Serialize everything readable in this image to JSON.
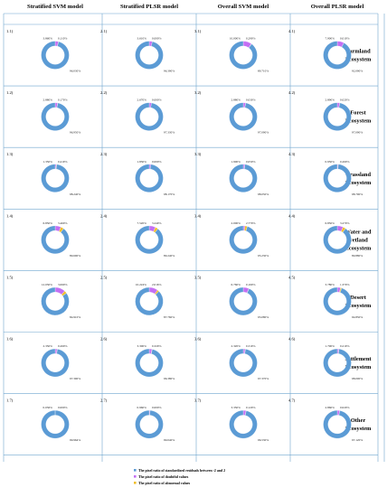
{
  "colors": {
    "normal": "#5b9bd5",
    "doubtful": "#c36ff3",
    "abnormal": "#f0be29",
    "grid": "#6fa6cf"
  },
  "columns": [
    "Stratified SVM model",
    "Stratified PLSR model",
    "Overall SVM model",
    "Overall PLSR model"
  ],
  "rows": [
    {
      "label": "Farmland Ecosystem",
      "lines": [
        "Farmland",
        "Ecosystem"
      ]
    },
    {
      "label": "Forest Ecosystem",
      "lines": [
        "Forest",
        "Ecosystem"
      ]
    },
    {
      "label": "Grassland Ecosystem",
      "lines": [
        "Grassland",
        "Ecosystem"
      ]
    },
    {
      "label": "Water and wetland Ecosystem",
      "lines": [
        "Water and",
        "wetland",
        "Ecosystem"
      ]
    },
    {
      "label": "Desert Ecosystem",
      "lines": [
        "Desert",
        "Ecosystem"
      ]
    },
    {
      "label": "Settlement Ecosystem",
      "lines": [
        "Settlement",
        "Ecosystem"
      ]
    },
    {
      "label": "Other Ecosystem",
      "lines": [
        "Other",
        "Ecosystem"
      ]
    }
  ],
  "legend": [
    "The pixel ratio of standardized residuals between -2 and 2",
    "The pixel ratio of doubtful values",
    "The pixel ratio of abnormal values"
  ],
  "chart_data": {
    "type": "pie",
    "style": "donut grid",
    "series": [
      "The pixel ratio of standardized residuals between -2 and 2",
      "The pixel ratio of doubtful values",
      "The pixel ratio of abnormal values"
    ],
    "panels": [
      [
        {
          "id": "1.1)",
          "values": [
            96.03,
            3.86,
            0.11
          ],
          "labels": [
            "96.030%",
            "3.860%",
            "0.110%"
          ]
        },
        {
          "id": "2.1)",
          "values": [
            96.39,
            3.61,
            0.0
          ],
          "labels": [
            "96.390%",
            "3.610%",
            "0.000%"
          ]
        },
        {
          "id": "3.1)",
          "values": [
            89.71,
            10.0,
            0.29
          ],
          "labels": [
            "89.710%",
            "10.000%",
            "0.290%"
          ]
        },
        {
          "id": "4.1)",
          "values": [
            92.09,
            7.9,
            0.01
          ],
          "labels": [
            "92.090%",
            "7.900%",
            "0.010%"
          ]
        }
      ],
      [
        {
          "id": "1.2)",
          "values": [
            96.95,
            2.88,
            0.17
          ],
          "labels": [
            "96.950%",
            "2.880%",
            "0.170%"
          ]
        },
        {
          "id": "2.2)",
          "values": [
            97.33,
            2.67,
            0.0
          ],
          "labels": [
            "97.330%",
            "2.670%",
            "0.000%"
          ]
        },
        {
          "id": "3.2)",
          "values": [
            97.09,
            2.88,
            0.03
          ],
          "labels": [
            "97.090%",
            "2.880%",
            "0.030%"
          ]
        },
        {
          "id": "4.2)",
          "values": [
            97.09,
            2.89,
            0.02
          ],
          "labels": [
            "97.090%",
            "2.890%",
            "0.020%"
          ]
        }
      ],
      [
        {
          "id": "1.3)",
          "values": [
            98.24,
            1.35,
            0.41
          ],
          "labels": [
            "98.240%",
            "1.350%",
            "0.410%"
          ]
        },
        {
          "id": "2.3)",
          "values": [
            98.17,
            1.83,
            0.0
          ],
          "labels": [
            "98.170%",
            "1.830%",
            "0.000%"
          ]
        },
        {
          "id": "3.3)",
          "values": [
            98.05,
            1.9,
            0.05
          ],
          "labels": [
            "98.050%",
            "1.900%",
            "0.050%"
          ]
        },
        {
          "id": "4.3)",
          "values": [
            98.79,
            0.95,
            0.26
          ],
          "labels": [
            "98.790%",
            "0.950%",
            "0.260%"
          ]
        }
      ],
      [
        {
          "id": "1.4)",
          "values": [
            89.69,
            6.85,
            3.46
          ],
          "labels": [
            "89.690%",
            "6.850%",
            "3.460%"
          ]
        },
        {
          "id": "2.4)",
          "values": [
            89.24,
            7.52,
            3.24
          ],
          "labels": [
            "89.240%",
            "7.520%",
            "3.240%"
          ]
        },
        {
          "id": "3.4)",
          "values": [
            95.23,
            2.0,
            2.77
          ],
          "labels": [
            "95.230%",
            "2.000%",
            "2.770%"
          ]
        },
        {
          "id": "4.4)",
          "values": [
            89.88,
            6.85,
            3.27
          ],
          "labels": [
            "89.880%",
            "6.850%",
            "3.270%"
          ]
        }
      ],
      [
        {
          "id": "1.5)",
          "values": [
            84.91,
            12.03,
            3.06
          ],
          "labels": [
            "84.910%",
            "12.030%",
            "3.060%"
          ]
        },
        {
          "id": "2.5)",
          "values": [
            87.76,
            10.224,
            2.016
          ],
          "labels": [
            "87.760%",
            "10.224%",
            "2.016%"
          ]
        },
        {
          "id": "3.5)",
          "values": [
            93.08,
            6.76,
            0.16
          ],
          "labels": [
            "93.080%",
            "6.760%",
            "0.160%"
          ]
        },
        {
          "id": "4.5)",
          "values": [
            94.85,
            3.78,
            1.37
          ],
          "labels": [
            "94.850%",
            "3.780%",
            "1.370%"
          ]
        }
      ],
      [
        {
          "id": "1.6)",
          "values": [
            97.39,
            2.35,
            0.26
          ],
          "labels": [
            "97.390%",
            "2.350%",
            "0.260%"
          ]
        },
        {
          "id": "2.6)",
          "values": [
            96.38,
            3.3,
            0.32
          ],
          "labels": [
            "96.380%",
            "3.300%",
            "0.320%"
          ]
        },
        {
          "id": "3.6)",
          "values": [
            97.37,
            2.32,
            0.31
          ],
          "labels": [
            "97.370%",
            "2.320%",
            "0.310%"
          ]
        },
        {
          "id": "4.6)",
          "values": [
            98.0,
            1.79,
            0.21
          ],
          "labels": [
            "98.000%",
            "1.790%",
            "0.210%"
          ]
        }
      ],
      [
        {
          "id": "1.7)",
          "values": [
            99.96,
            0.04,
            0.0
          ],
          "labels": [
            "99.964%",
            "0.036%",
            "0.000%"
          ]
        },
        {
          "id": "2.7)",
          "values": [
            99.04,
            0.96,
            0.0
          ],
          "labels": [
            "99.040%",
            "0.960%",
            "0.000%"
          ]
        },
        {
          "id": "3.7)",
          "values": [
            96.53,
            3.35,
            0.12
          ],
          "labels": [
            "96.530%",
            "3.350%",
            "0.120%"
          ]
        },
        {
          "id": "4.7)",
          "values": [
            97.12,
            2.86,
            0.02
          ],
          "labels": [
            "97.120%",
            "2.860%",
            "0.020%"
          ]
        }
      ]
    ]
  }
}
